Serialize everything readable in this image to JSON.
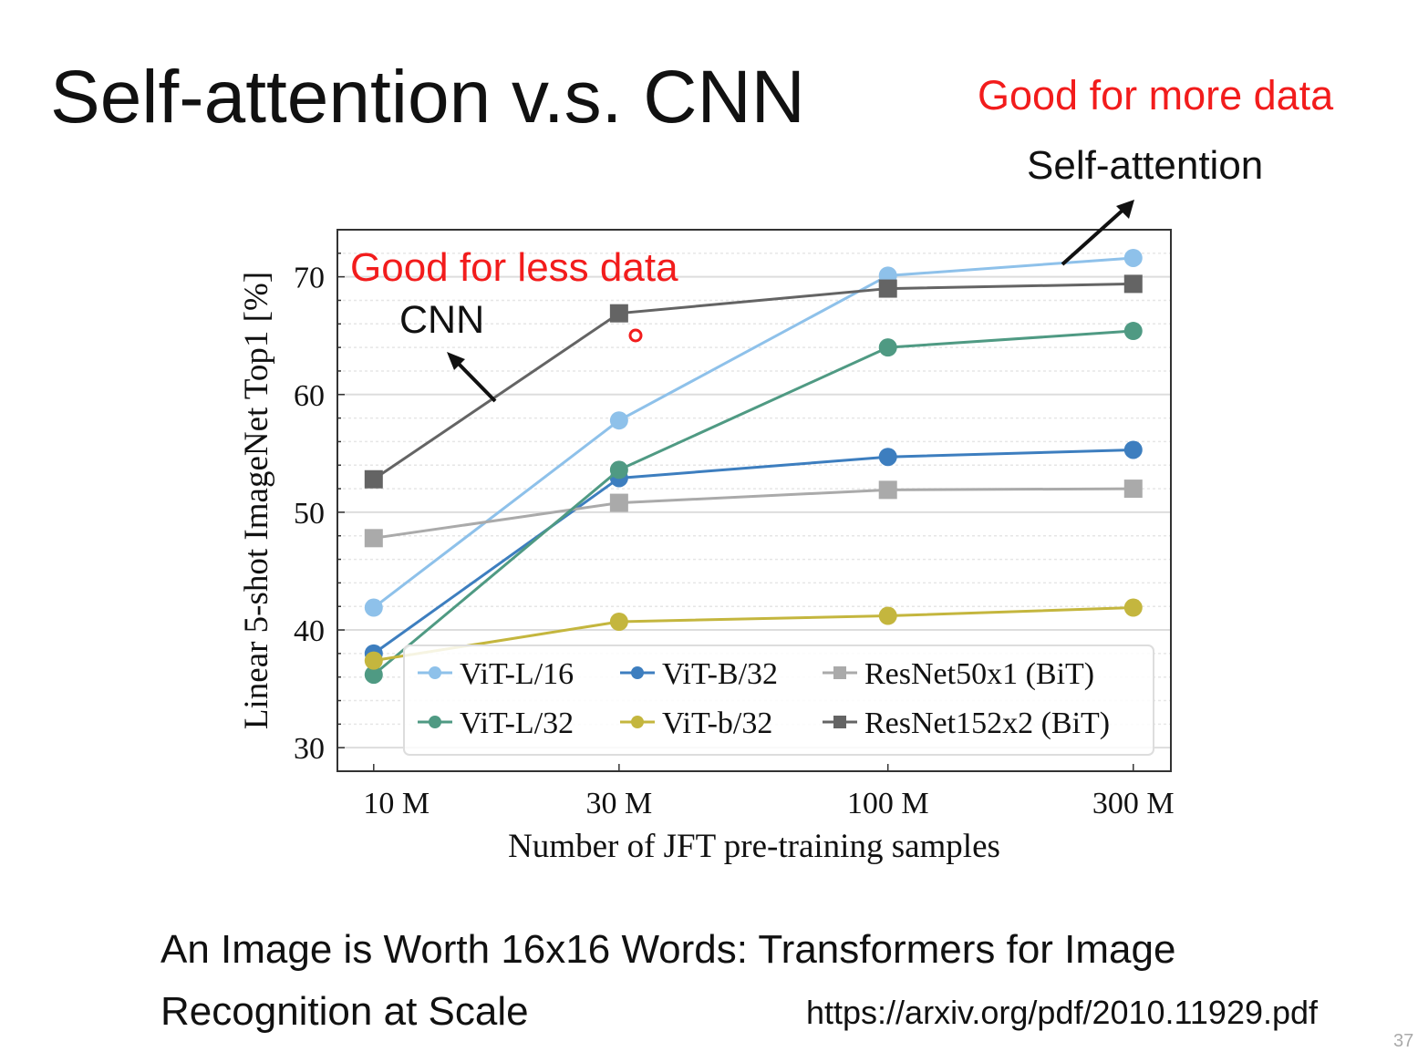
{
  "slide": {
    "title": "Self-attention v.s. CNN",
    "annotation_more_data": "Good for more data",
    "annotation_self_attention": "Self-attention",
    "annotation_less_data": "Good for less data",
    "annotation_cnn": "CNN",
    "paper_title": "An Image is Worth 16x16 Words: Transformers for Image Recognition at Scale",
    "url": "https://arxiv.org/pdf/2010.11929.pdf",
    "slide_number": "37",
    "accent_color": "#f21c1c"
  },
  "chart_data": {
    "type": "line",
    "xlabel": "Number of JFT pre-training samples",
    "ylabel": "Linear 5-shot ImageNet Top1 [%]",
    "x_scale": "log",
    "x": [
      10000000,
      30000000,
      100000000,
      300000000
    ],
    "x_tick_labels": [
      "10 M",
      "30 M",
      "100 M",
      "300 M"
    ],
    "y_ticks": [
      30,
      40,
      50,
      60,
      70
    ],
    "ylim": [
      28,
      74
    ],
    "xlim": [
      8500000,
      355000000
    ],
    "grid": true,
    "legend_placement": "bottom-right",
    "series": [
      {
        "name": "ViT-L/16",
        "color": "#8ec1ea",
        "marker": "circle",
        "values": [
          41.9,
          57.8,
          70.1,
          71.6
        ]
      },
      {
        "name": "ViT-B/32",
        "color": "#3d7ebf",
        "marker": "circle",
        "values": [
          38.0,
          52.9,
          54.7,
          55.3
        ]
      },
      {
        "name": "ResNet50x1 (BiT)",
        "color": "#aaaaaa",
        "marker": "square",
        "values": [
          47.8,
          50.8,
          51.9,
          52.0
        ]
      },
      {
        "name": "ViT-L/32",
        "color": "#4f9a83",
        "marker": "circle",
        "values": [
          36.2,
          53.6,
          64.0,
          65.4
        ]
      },
      {
        "name": "ViT-b/32",
        "color": "#c4b63e",
        "marker": "circle",
        "values": [
          37.4,
          40.7,
          41.2,
          41.9
        ]
      },
      {
        "name": "ResNet152x2 (BiT)",
        "color": "#646464",
        "marker": "square",
        "values": [
          52.8,
          66.9,
          69.0,
          69.4
        ]
      }
    ]
  }
}
